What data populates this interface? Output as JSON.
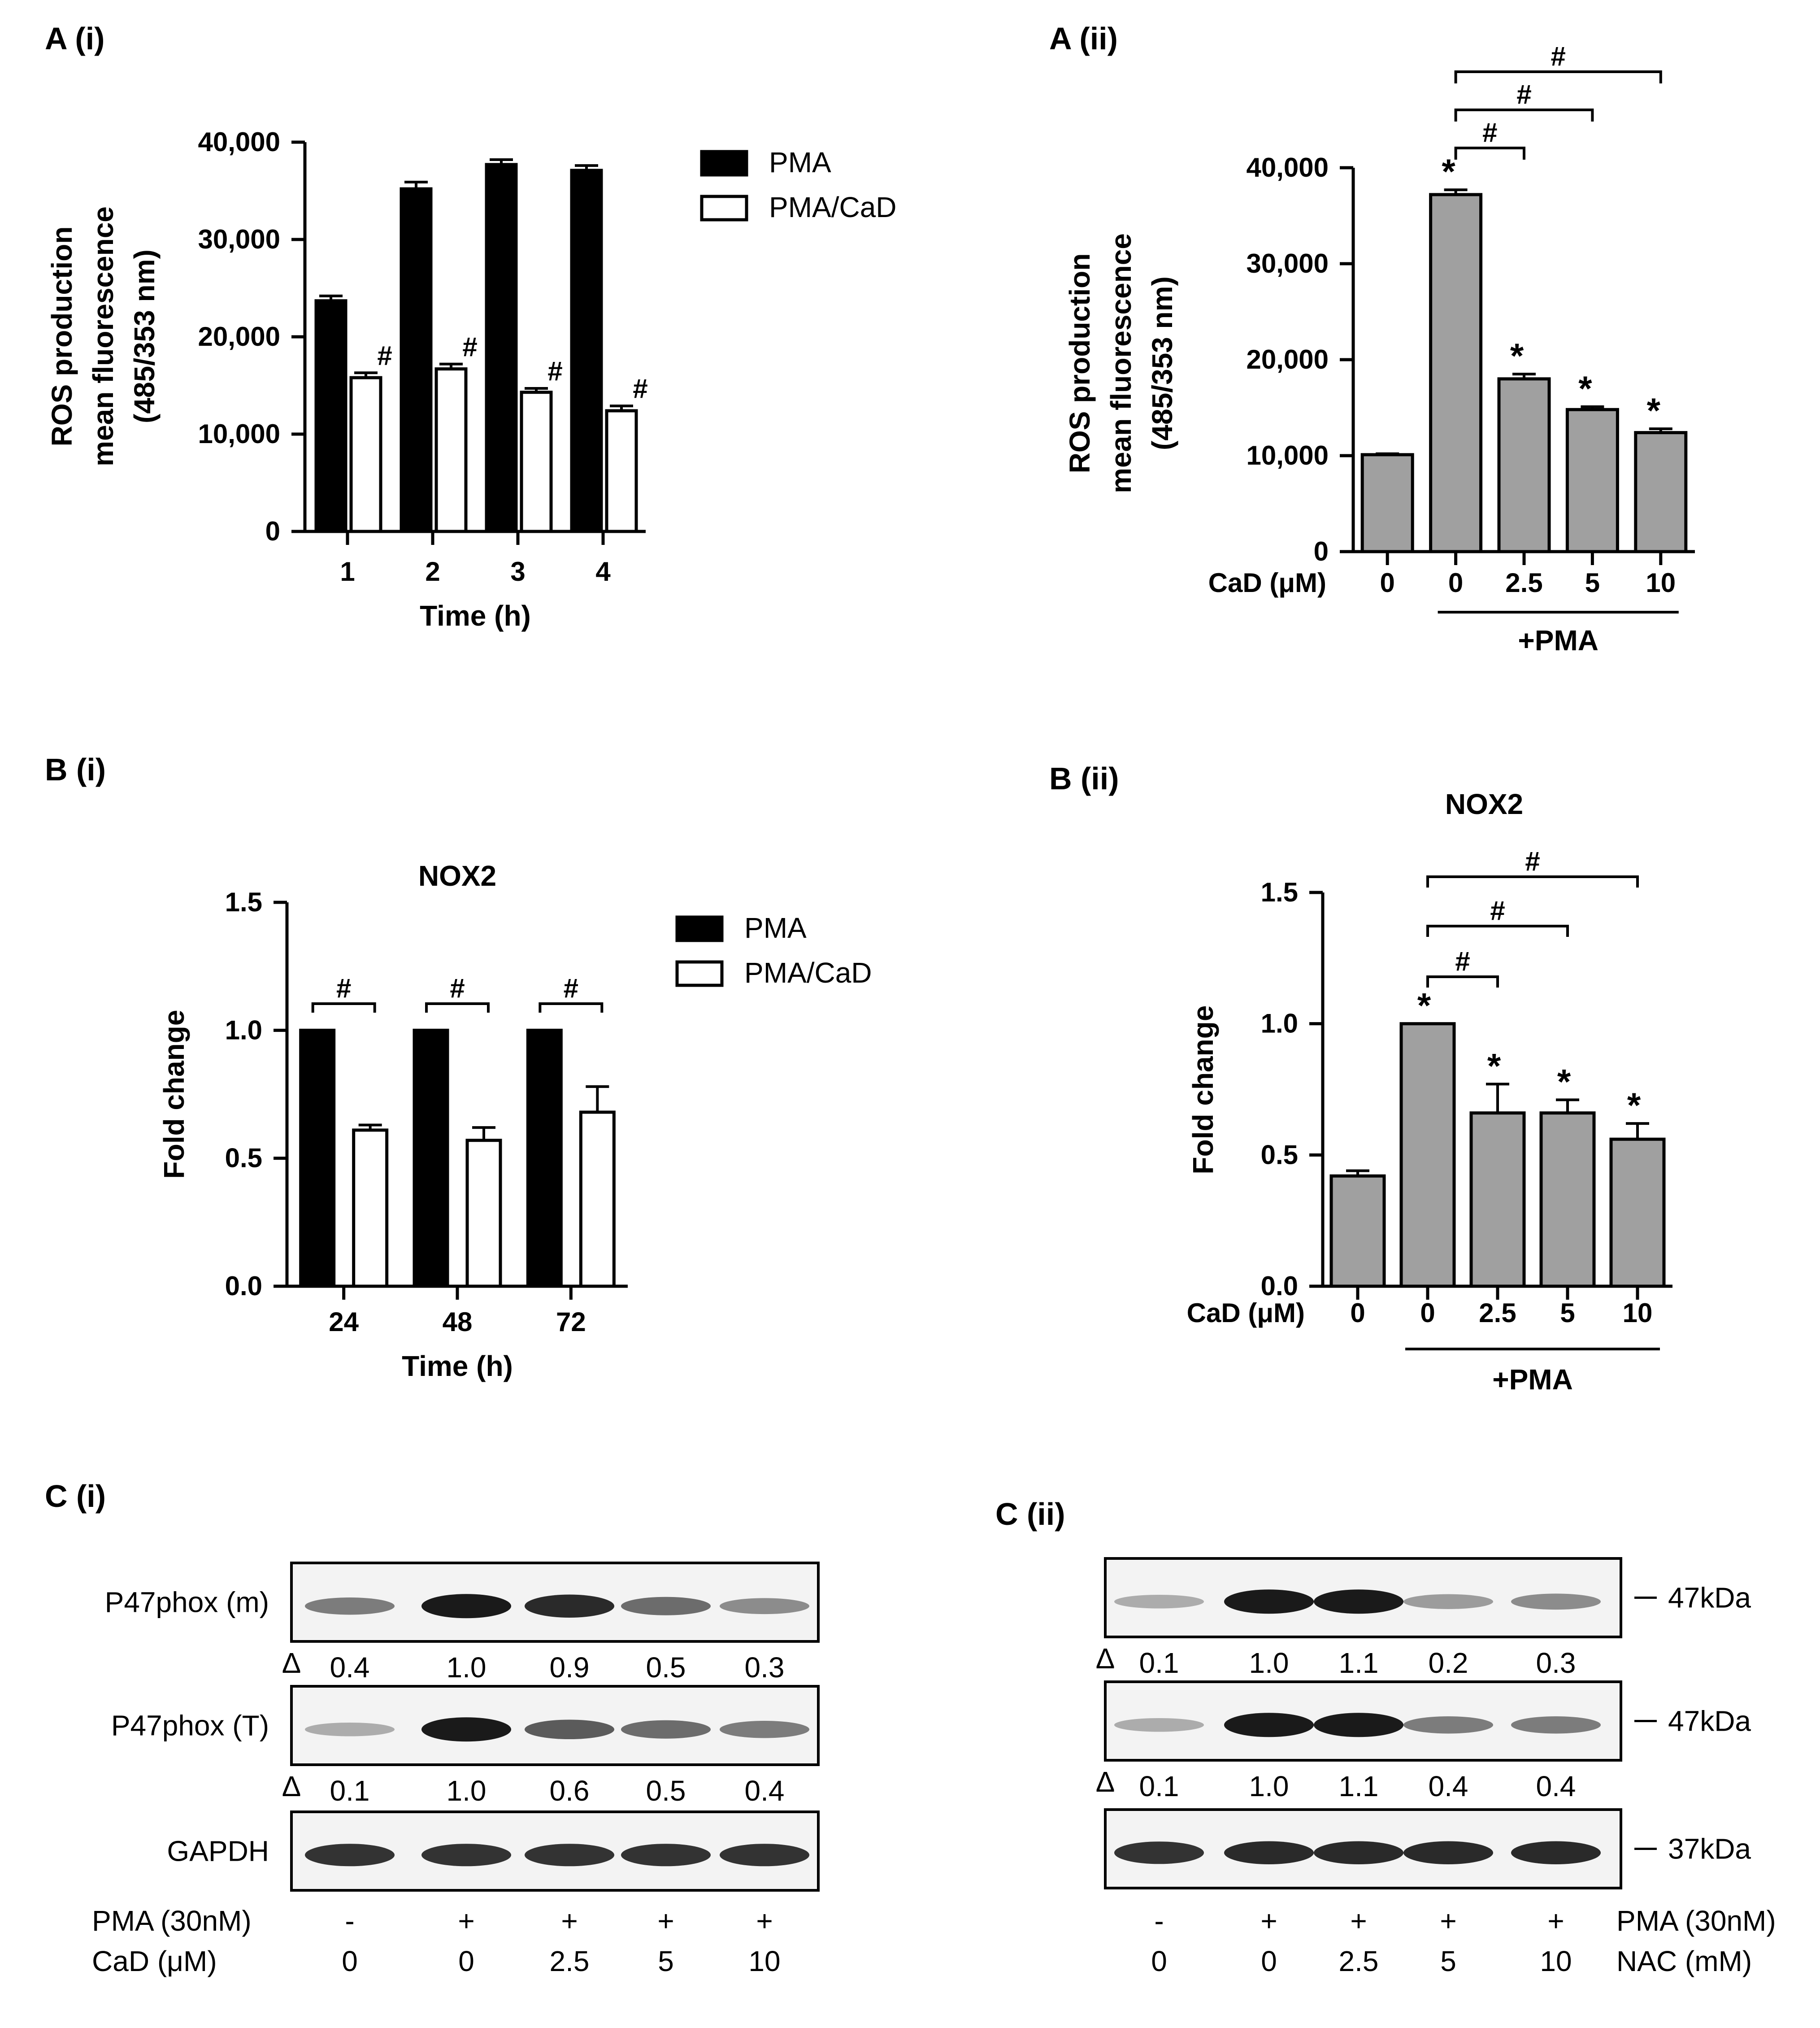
{
  "panels": {
    "a_i": "A (i)",
    "a_ii": "A (ii)",
    "b_i": "B (i)",
    "b_ii": "B (ii)",
    "c_i": "C (i)",
    "c_ii": "C (ii)"
  },
  "colors": {
    "pma": "#000000",
    "pma_cad": "#ffffff",
    "gray": "#a0a0a0"
  },
  "chart_data": [
    {
      "id": "A(i)",
      "type": "bar",
      "ylabel": [
        "ROS production",
        "mean fluorescence",
        "(485/353 nm)"
      ],
      "xlabel": "Time (h)",
      "categories": [
        "1",
        "2",
        "3",
        "4"
      ],
      "ylim": [
        0,
        40000
      ],
      "yticks": [
        "0",
        "10,000",
        "20,000",
        "30,000",
        "40,000"
      ],
      "series": [
        {
          "name": "PMA",
          "values": [
            23700,
            35200,
            37700,
            37100
          ],
          "errors": [
            500,
            700,
            500,
            500
          ]
        },
        {
          "name": "PMA/CaD",
          "values": [
            15800,
            16700,
            14300,
            12400
          ],
          "errors": [
            500,
            500,
            400,
            500
          ],
          "marks": [
            "#",
            "#",
            "#",
            "#"
          ]
        }
      ],
      "legend_position": "top-right"
    },
    {
      "id": "A(ii)",
      "type": "bar",
      "ylabel": [
        "ROS production",
        "mean fluorescence",
        "(485/353 nm)"
      ],
      "xlabel": "CaD (μM)",
      "categories": [
        "0",
        "0",
        "2.5",
        "5",
        "10"
      ],
      "group_label": "+PMA",
      "ylim": [
        0,
        40000
      ],
      "yticks": [
        "0",
        "10,000",
        "20,000",
        "30,000",
        "40,000"
      ],
      "values": [
        10100,
        37200,
        18000,
        14800,
        12400
      ],
      "errors": [
        100,
        500,
        500,
        300,
        400
      ],
      "marks": [
        "",
        "*",
        "*",
        "*",
        "*"
      ],
      "brackets": [
        "#",
        "#",
        "#"
      ]
    },
    {
      "id": "B(i)",
      "type": "bar",
      "title": "NOX2",
      "ylabel": "Fold change",
      "xlabel": "Time (h)",
      "categories": [
        "24",
        "48",
        "72"
      ],
      "ylim": [
        0,
        1.5
      ],
      "yticks": [
        "0.0",
        "0.5",
        "1.0",
        "1.5"
      ],
      "series": [
        {
          "name": "PMA",
          "values": [
            1.0,
            1.0,
            1.0
          ],
          "errors": [
            0,
            0,
            0
          ]
        },
        {
          "name": "PMA/CaD",
          "values": [
            0.61,
            0.57,
            0.68
          ],
          "errors": [
            0.02,
            0.05,
            0.1
          ]
        }
      ],
      "brackets": [
        "#",
        "#",
        "#"
      ],
      "legend_position": "top-right"
    },
    {
      "id": "B(ii)",
      "type": "bar",
      "title": "NOX2",
      "ylabel": "Fold change",
      "xlabel": "CaD (μM)",
      "categories": [
        "0",
        "0",
        "2.5",
        "5",
        "10"
      ],
      "group_label": "+PMA",
      "ylim": [
        0,
        1.5
      ],
      "yticks": [
        "0.0",
        "0.5",
        "1.0",
        "1.5"
      ],
      "values": [
        0.42,
        1.0,
        0.66,
        0.66,
        0.56
      ],
      "errors": [
        0.02,
        0.0,
        0.11,
        0.05,
        0.06
      ],
      "marks": [
        "",
        "*",
        "*",
        "*",
        "*"
      ],
      "brackets": [
        "#",
        "#",
        "#"
      ]
    }
  ],
  "blots": {
    "c_i": {
      "rows": [
        {
          "label": "P47phox (m)",
          "values": [
            "0.4",
            "1.0",
            "0.9",
            "0.5",
            "0.3"
          ]
        },
        {
          "label": "P47phox (T)",
          "values": [
            "0.1",
            "1.0",
            "0.6",
            "0.5",
            "0.4"
          ]
        },
        {
          "label": "GAPDH",
          "values": []
        }
      ],
      "delta": "Δ",
      "treatments": [
        {
          "label": "PMA (30nM)",
          "values": [
            "-",
            "+",
            "+",
            "+",
            "+"
          ]
        },
        {
          "label": "CaD (μM)",
          "values": [
            "0",
            "0",
            "2.5",
            "5",
            "10"
          ]
        }
      ]
    },
    "c_ii": {
      "rows": [
        {
          "size": "47kDa",
          "values": [
            "0.1",
            "1.0",
            "1.1",
            "0.2",
            "0.3"
          ]
        },
        {
          "size": "47kDa",
          "values": [
            "0.1",
            "1.0",
            "1.1",
            "0.4",
            "0.4"
          ]
        },
        {
          "size": "37kDa",
          "values": []
        }
      ],
      "delta": "Δ",
      "treatments": [
        {
          "label": "PMA (30nM)",
          "values": [
            "-",
            "+",
            "+",
            "+",
            "+"
          ]
        },
        {
          "label": "NAC (mM)",
          "values": [
            "0",
            "0",
            "2.5",
            "5",
            "10"
          ]
        }
      ]
    }
  }
}
